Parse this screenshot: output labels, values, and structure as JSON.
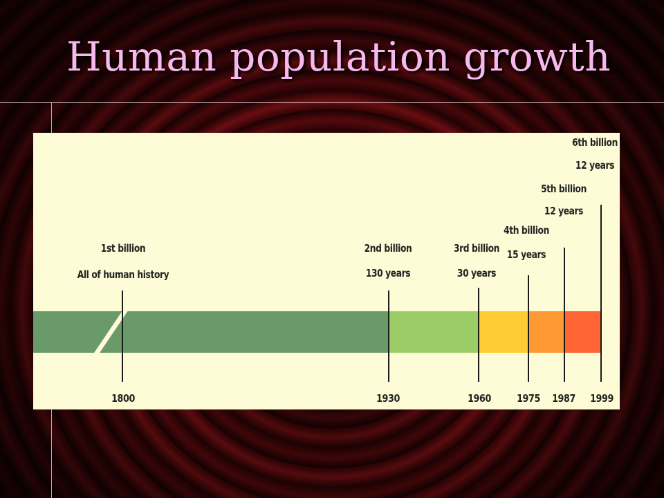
{
  "slide": {
    "title": "Human population growth"
  },
  "timeline": {
    "colors": {
      "panel": "#fdfcd6",
      "seg_1800_1930": "#6a9a6a",
      "seg_1930_1960": "#9ccc66",
      "seg_1960_1975": "#ffcc33",
      "seg_1975_1987": "#ff9933",
      "seg_1987_1999": "#ff6633"
    },
    "milestones": [
      {
        "year": "1800",
        "billion": "1st billion",
        "duration": "All of human history"
      },
      {
        "year": "1930",
        "billion": "2nd billion",
        "duration": "130 years"
      },
      {
        "year": "1960",
        "billion": "3rd billion",
        "duration": "30 years"
      },
      {
        "year": "1975",
        "billion": "4th billion",
        "duration": "15 years"
      },
      {
        "year": "1987",
        "billion": "5th billion",
        "duration": "12 years"
      },
      {
        "year": "1999",
        "billion": "6th billion",
        "duration": "12 years"
      }
    ]
  }
}
